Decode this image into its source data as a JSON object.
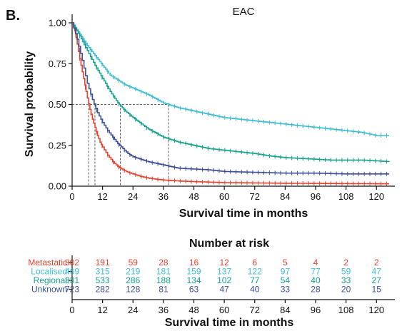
{
  "panel_label": "B.",
  "chart_data": [
    {
      "type": "line",
      "title": "EAC",
      "xlabel": "Survival time in months",
      "ylabel": "Survival probability",
      "xlim": [
        0,
        125
      ],
      "ylim": [
        0,
        1
      ],
      "xticks": [
        0,
        12,
        24,
        36,
        48,
        60,
        72,
        84,
        96,
        108,
        120
      ],
      "yticks": [
        0,
        0.25,
        0.5,
        0.75,
        1
      ],
      "ytick_labels": [
        "0.00",
        "0.25",
        "0.50",
        "0.75",
        "1.00"
      ],
      "grid": false,
      "median_reference": {
        "y": 0.5,
        "medians": [
          {
            "series": "Metastatic",
            "x": 6.5
          },
          {
            "series": "Unknown",
            "x": 9
          },
          {
            "series": "Regional",
            "x": 19
          },
          {
            "series": "Localised",
            "x": 38
          }
        ]
      },
      "series": [
        {
          "name": "Metastatic",
          "color": "#e8412c",
          "x": [
            0,
            1,
            2,
            3,
            4,
            5,
            6,
            7,
            8,
            9,
            10,
            11,
            12,
            14,
            16,
            18,
            20,
            22,
            24,
            27,
            30,
            33,
            36,
            42,
            48,
            54,
            60,
            72,
            84,
            96,
            108,
            120,
            125
          ],
          "y": [
            1.0,
            0.95,
            0.87,
            0.78,
            0.7,
            0.62,
            0.54,
            0.47,
            0.41,
            0.36,
            0.31,
            0.27,
            0.24,
            0.19,
            0.15,
            0.12,
            0.1,
            0.085,
            0.075,
            0.06,
            0.05,
            0.043,
            0.038,
            0.032,
            0.028,
            0.025,
            0.022,
            0.02,
            0.018,
            0.017,
            0.016,
            0.015,
            0.015
          ]
        },
        {
          "name": "Localised",
          "color": "#3dbcd4",
          "x": [
            0,
            3,
            6,
            9,
            12,
            15,
            18,
            21,
            24,
            30,
            36,
            42,
            48,
            54,
            60,
            66,
            72,
            78,
            84,
            90,
            96,
            102,
            108,
            114,
            120,
            125
          ],
          "y": [
            1.0,
            0.93,
            0.86,
            0.8,
            0.74,
            0.68,
            0.65,
            0.62,
            0.6,
            0.56,
            0.51,
            0.48,
            0.46,
            0.44,
            0.42,
            0.41,
            0.4,
            0.39,
            0.38,
            0.37,
            0.36,
            0.35,
            0.34,
            0.33,
            0.31,
            0.31
          ]
        },
        {
          "name": "Regional",
          "color": "#17a38c",
          "x": [
            0,
            3,
            6,
            9,
            12,
            15,
            18,
            21,
            24,
            30,
            36,
            42,
            48,
            54,
            60,
            66,
            72,
            78,
            84,
            90,
            96,
            102,
            108,
            114,
            120,
            125
          ],
          "y": [
            1.0,
            0.92,
            0.83,
            0.74,
            0.66,
            0.58,
            0.51,
            0.46,
            0.42,
            0.35,
            0.3,
            0.27,
            0.25,
            0.23,
            0.22,
            0.21,
            0.2,
            0.185,
            0.175,
            0.17,
            0.165,
            0.16,
            0.16,
            0.16,
            0.155,
            0.15
          ]
        },
        {
          "name": "Unknown",
          "color": "#3c4f96",
          "x": [
            0,
            2,
            4,
            6,
            8,
            10,
            12,
            14,
            16,
            18,
            20,
            22,
            24,
            30,
            36,
            42,
            48,
            54,
            60,
            72,
            84,
            96,
            108,
            120,
            125
          ],
          "y": [
            1.0,
            0.9,
            0.77,
            0.63,
            0.53,
            0.45,
            0.39,
            0.34,
            0.3,
            0.26,
            0.23,
            0.2,
            0.18,
            0.15,
            0.13,
            0.11,
            0.105,
            0.1,
            0.09,
            0.085,
            0.08,
            0.08,
            0.075,
            0.075,
            0.075
          ]
        }
      ]
    },
    {
      "type": "table",
      "title": "Number at risk",
      "xlabel": "Survival time in months",
      "xticks": [
        0,
        12,
        24,
        36,
        48,
        60,
        72,
        84,
        96,
        108,
        120
      ],
      "rows": [
        {
          "name": "Metastatic",
          "color": "#e8412c",
          "values": [
            "802",
            "191",
            "59",
            "28",
            "16",
            "12",
            "6",
            "5",
            "4",
            "2",
            "2"
          ]
        },
        {
          "name": "Localised",
          "color": "#3dbcd4",
          "values": [
            "469",
            "315",
            "219",
            "181",
            "159",
            "137",
            "122",
            "97",
            "77",
            "59",
            "47"
          ]
        },
        {
          "name": "Regional",
          "color": "#17a38c",
          "values": [
            "831",
            "533",
            "286",
            "188",
            "134",
            "102",
            "77",
            "54",
            "40",
            "33",
            "27"
          ]
        },
        {
          "name": "Unknown",
          "color": "#3c4f96",
          "values": [
            "723",
            "282",
            "128",
            "81",
            "63",
            "47",
            "40",
            "33",
            "28",
            "20",
            "15"
          ]
        }
      ]
    }
  ]
}
